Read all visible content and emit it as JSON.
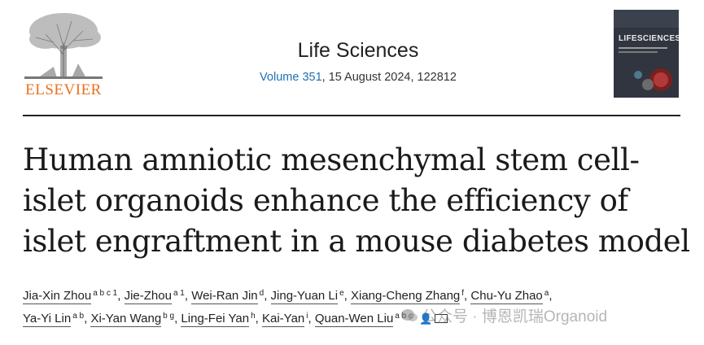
{
  "publisher": {
    "logo_icon": "elsevier-tree-icon",
    "name": "ELSEVIER",
    "brand_color": "#e9711c"
  },
  "journal": {
    "name": "Life Sciences",
    "volume_link": "Volume 351",
    "issue_rest": ", 15 August 2024, 122812",
    "link_color": "#1f6fb2"
  },
  "cover": {
    "title": "LIFESCIENCES"
  },
  "article": {
    "title_lines": [
      "Human amniotic mesenchymal stem cell-",
      "islet organoids enhance the efficiency of",
      "islet engraftment in a mouse diabetes model"
    ]
  },
  "authors": [
    {
      "name": "Jia-Xin Zhou",
      "aff": "a b c 1"
    },
    {
      "name": "Jie-Zhou",
      "aff": "a 1"
    },
    {
      "name": "Wei-Ran Jin",
      "aff": "d"
    },
    {
      "name": "Jing-Yuan Li",
      "aff": "e"
    },
    {
      "name": "Xiang-Cheng Zhang",
      "aff": "f"
    },
    {
      "name": "Chu-Yu Zhao",
      "aff": "a"
    },
    {
      "name": "Ya-Yi Lin",
      "aff": "a b"
    },
    {
      "name": "Xi-Yan Wang",
      "aff": "b g"
    },
    {
      "name": "Ling-Fei Yan",
      "aff": "h"
    },
    {
      "name": "Kai-Yan",
      "aff": "i"
    },
    {
      "name": "Quan-Wen Liu",
      "aff": "a b c"
    }
  ],
  "watermark": {
    "text": "公众号 · 博恩凯瑞Organoid",
    "icon": "wechat-official-account-icon"
  }
}
